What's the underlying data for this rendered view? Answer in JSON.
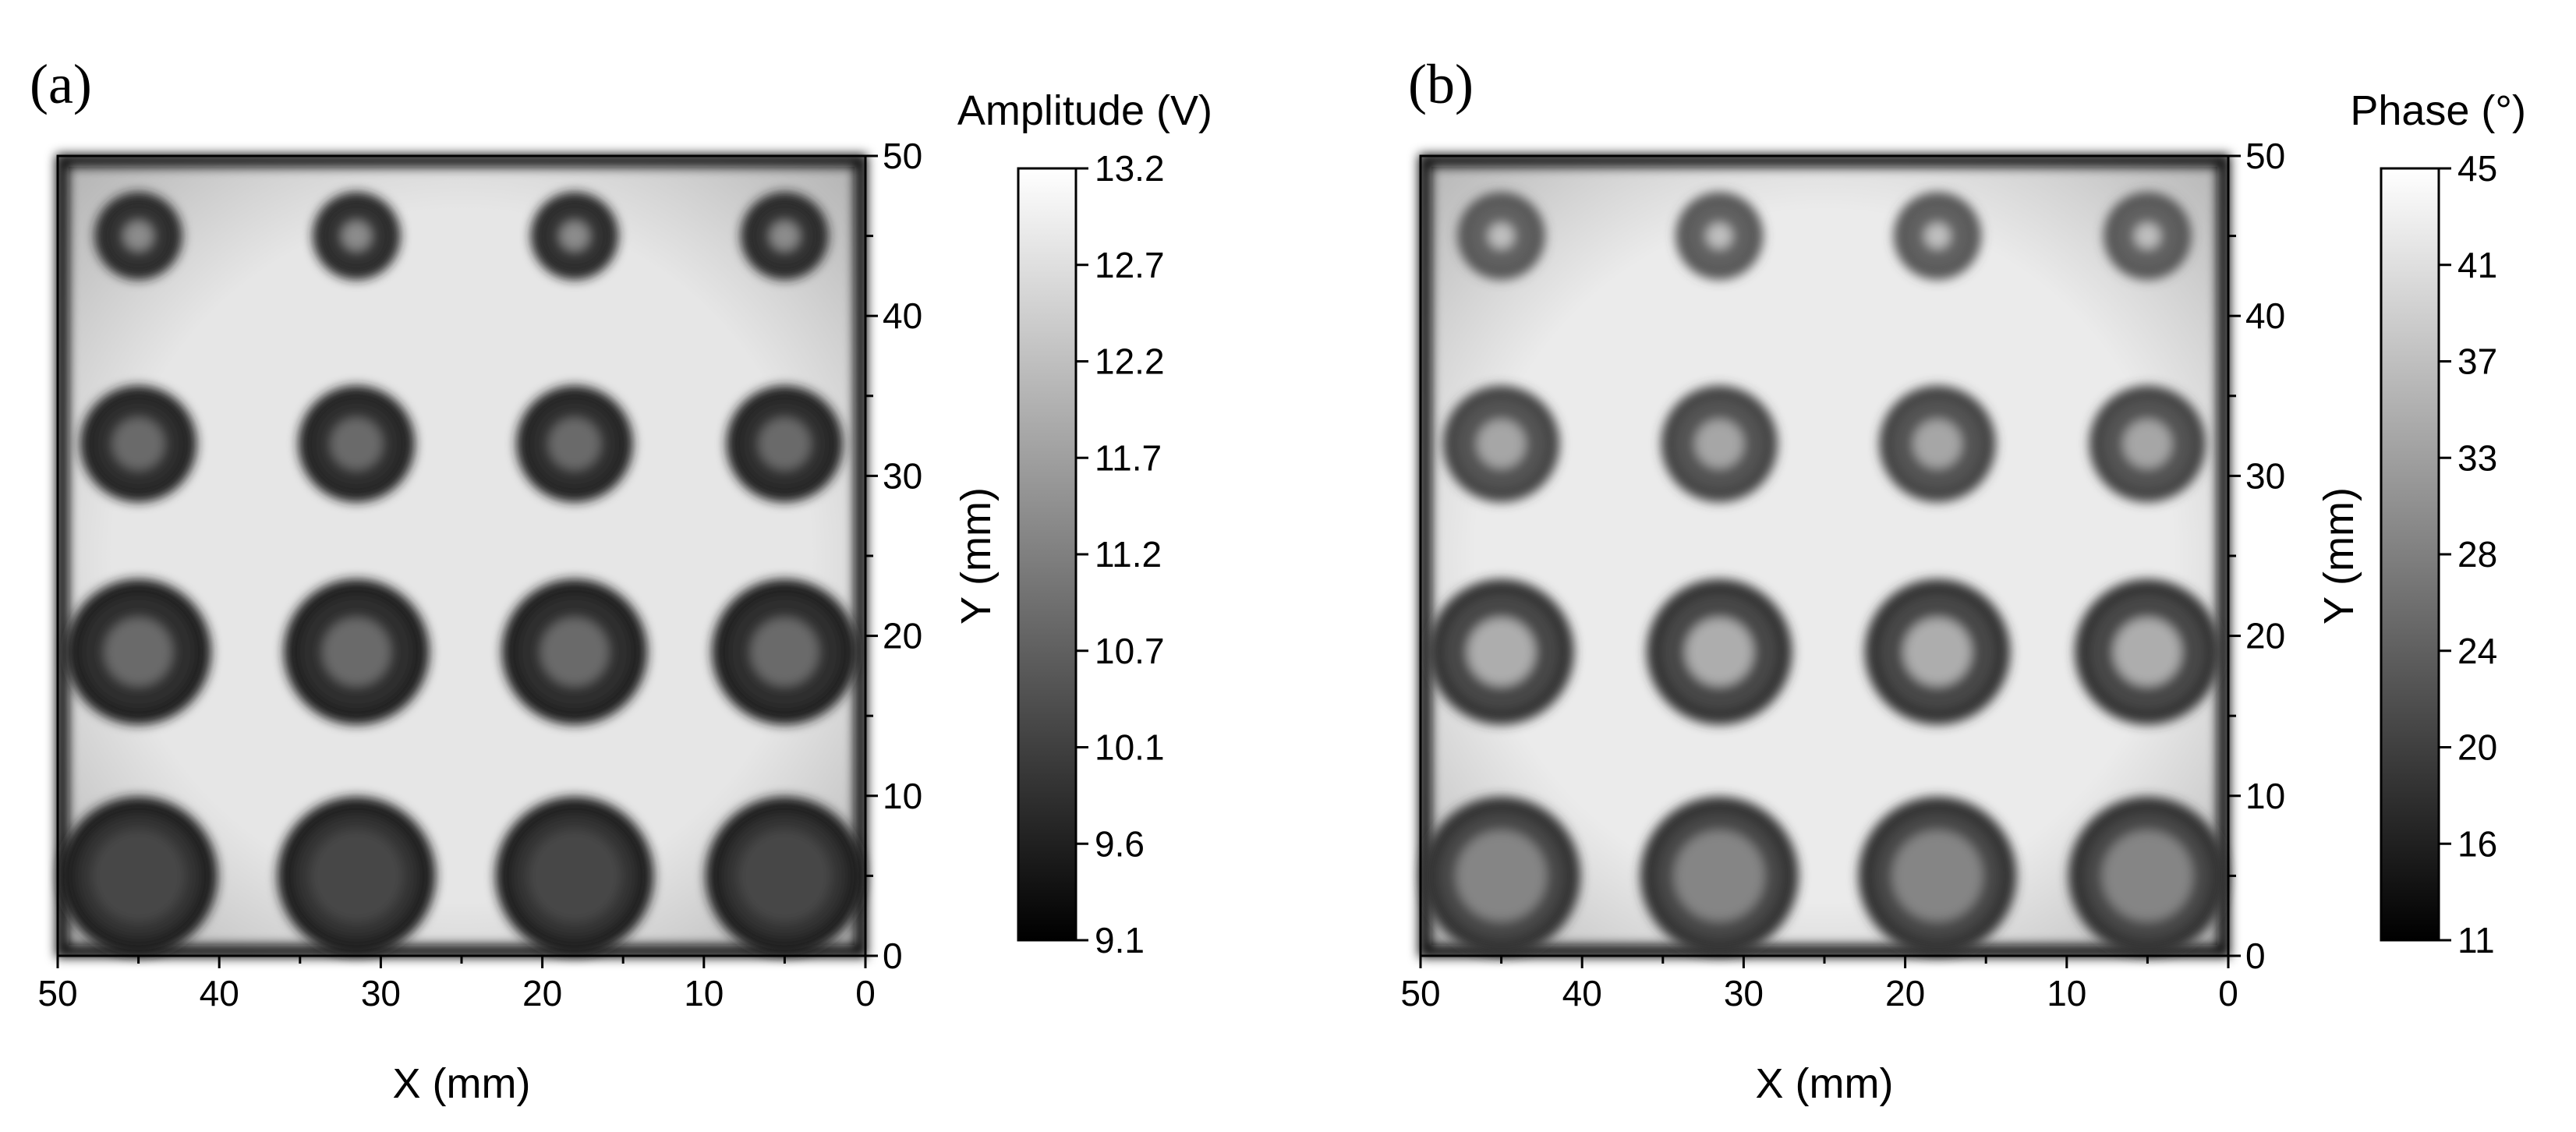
{
  "chart_data": [
    {
      "type": "heatmap",
      "panel_label": "(a)",
      "xlabel": "X (mm)",
      "ylabel": "Y (mm)",
      "xlim": [
        50,
        0
      ],
      "ylim": [
        0,
        50
      ],
      "x_ticks": [
        "50",
        "40",
        "30",
        "20",
        "10",
        "0"
      ],
      "y_ticks": [
        "0",
        "10",
        "20",
        "30",
        "40",
        "50"
      ],
      "colorbar": {
        "title": "Amplitude (V)",
        "range": [
          9.1,
          13.2
        ],
        "ticks": [
          "13.2",
          "12.7",
          "12.2",
          "11.7",
          "11.2",
          "10.7",
          "10.1",
          "9.6",
          "9.1"
        ],
        "colormap": "gray"
      },
      "background_level": 0.9,
      "defect_columns_x_mm": [
        45,
        31.5,
        18,
        5
      ],
      "defect_rows": [
        {
          "y_mm": 45,
          "outer_radius_mm": 2.7,
          "inner_radius_mm": 0.9,
          "ring_level": 0.12,
          "core_level": 0.55
        },
        {
          "y_mm": 32,
          "outer_radius_mm": 3.6,
          "inner_radius_mm": 1.6,
          "ring_level": 0.1,
          "core_level": 0.42
        },
        {
          "y_mm": 19,
          "outer_radius_mm": 4.5,
          "inner_radius_mm": 2.1,
          "ring_level": 0.1,
          "core_level": 0.42
        },
        {
          "y_mm": 5,
          "outer_radius_mm": 4.9,
          "inner_radius_mm": 2.9,
          "ring_level": 0.12,
          "core_level": 0.28
        }
      ]
    },
    {
      "type": "heatmap",
      "panel_label": "(b)",
      "xlabel": "X (mm)",
      "ylabel": "Y (mm)",
      "xlim": [
        50,
        0
      ],
      "ylim": [
        0,
        50
      ],
      "x_ticks": [
        "50",
        "40",
        "30",
        "20",
        "10",
        "0"
      ],
      "y_ticks": [
        "0",
        "10",
        "20",
        "30",
        "40",
        "50"
      ],
      "colorbar": {
        "title": "Phase (°)",
        "range": [
          11,
          45
        ],
        "ticks": [
          "45",
          "41",
          "37",
          "33",
          "28",
          "24",
          "20",
          "16",
          "11"
        ],
        "colormap": "gray"
      },
      "background_level": 0.92,
      "defect_columns_x_mm": [
        45,
        31.5,
        18,
        5
      ],
      "defect_rows": [
        {
          "y_mm": 45,
          "outer_radius_mm": 2.7,
          "inner_radius_mm": 0.8,
          "ring_level": 0.3,
          "core_level": 0.75
        },
        {
          "y_mm": 32,
          "outer_radius_mm": 3.6,
          "inner_radius_mm": 1.5,
          "ring_level": 0.24,
          "core_level": 0.65
        },
        {
          "y_mm": 19,
          "outer_radius_mm": 4.5,
          "inner_radius_mm": 2.1,
          "ring_level": 0.2,
          "core_level": 0.68
        },
        {
          "y_mm": 5,
          "outer_radius_mm": 4.9,
          "inner_radius_mm": 2.8,
          "ring_level": 0.2,
          "core_level": 0.52
        }
      ]
    }
  ]
}
